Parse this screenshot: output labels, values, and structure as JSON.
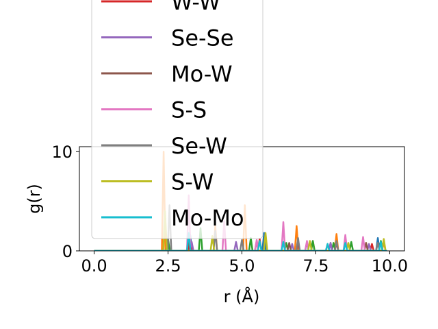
{
  "chart_data": {
    "type": "line",
    "xlabel": "r (Å)",
    "ylabel": "g(r)",
    "xlim": [
      -0.5,
      10.5
    ],
    "ylim": [
      0,
      10.5
    ],
    "xticks": [
      0.0,
      2.5,
      5.0,
      7.5,
      10.0
    ],
    "xtick_labels": [
      "0.0",
      "2.5",
      "5.0",
      "7.5",
      "10.0"
    ],
    "yticks": [
      0,
      10
    ],
    "ytick_labels": [
      "0",
      "10"
    ],
    "grid": false,
    "legend_position": "upper-left, overlapping plot",
    "series": [
      {
        "name": "W-W",
        "color": "#d62728",
        "peaks": [
          [
            3.25,
            1.0
          ],
          [
            5.6,
            1.2
          ],
          [
            6.9,
            0.8
          ],
          [
            8.2,
            0.8
          ],
          [
            9.4,
            0.7
          ]
        ]
      },
      {
        "name": "Se-Se",
        "color": "#9467bd",
        "peaks": [
          [
            3.3,
            0.9
          ],
          [
            4.8,
            0.9
          ],
          [
            6.7,
            0.7
          ],
          [
            8.0,
            0.8
          ],
          [
            9.3,
            0.7
          ]
        ]
      },
      {
        "name": "Mo-W",
        "color": "#8c564b",
        "peaks": [
          [
            3.2,
            1.1
          ],
          [
            5.5,
            1.0
          ],
          [
            6.6,
            0.8
          ],
          [
            7.9,
            0.7
          ],
          [
            9.2,
            0.8
          ]
        ]
      },
      {
        "name": "S-S",
        "color": "#e377c2",
        "peaks": [
          [
            3.2,
            5.6
          ],
          [
            4.4,
            3.0
          ],
          [
            5.5,
            1.1
          ],
          [
            6.4,
            2.9
          ],
          [
            7.2,
            1.0
          ],
          [
            8.5,
            1.6
          ],
          [
            9.1,
            1.4
          ]
        ]
      },
      {
        "name": "Se-W",
        "color": "#7f7f7f",
        "peaks": [
          [
            2.55,
            4.6
          ],
          [
            4.1,
            2.0
          ],
          [
            5.0,
            1.1
          ],
          [
            6.9,
            1.3
          ],
          [
            8.2,
            1.0
          ],
          [
            9.6,
            0.8
          ]
        ]
      },
      {
        "name": "S-W",
        "color": "#bcbd22",
        "peaks": [
          [
            2.4,
            4.0
          ],
          [
            4.0,
            1.5
          ],
          [
            5.8,
            1.8
          ],
          [
            7.3,
            1.0
          ],
          [
            8.6,
            0.8
          ],
          [
            9.8,
            1.2
          ]
        ]
      },
      {
        "name": "Mo-Mo",
        "color": "#17becf",
        "peaks": [
          [
            3.2,
            1.8
          ],
          [
            5.6,
            1.0
          ],
          [
            6.4,
            0.9
          ],
          [
            7.9,
            0.7
          ],
          [
            8.5,
            0.8
          ],
          [
            9.7,
            0.9
          ]
        ]
      }
    ],
    "background_series": [
      {
        "color": "#ff7f0e",
        "peaks": [
          [
            2.35,
            10.0
          ],
          [
            4.1,
            2.5
          ],
          [
            5.1,
            4.6
          ],
          [
            6.85,
            2.5
          ],
          [
            7.4,
            1.0
          ],
          [
            8.2,
            1.7
          ],
          [
            9.2,
            0.8
          ],
          [
            9.8,
            0.9
          ]
        ]
      },
      {
        "color": "#2ca02c",
        "peaks": [
          [
            2.5,
            1.2
          ],
          [
            3.6,
            2.3
          ],
          [
            5.3,
            1.3
          ],
          [
            6.5,
            0.8
          ],
          [
            7.4,
            1.0
          ],
          [
            8.1,
            0.8
          ],
          [
            8.7,
            0.9
          ],
          [
            9.7,
            1.0
          ]
        ]
      },
      {
        "color": "#1f77b4",
        "peaks": [
          [
            3.25,
            1.6
          ],
          [
            5.75,
            1.8
          ],
          [
            6.9,
            1.0
          ],
          [
            7.2,
            0.9
          ],
          [
            8.0,
            0.8
          ],
          [
            9.6,
            1.3
          ]
        ]
      }
    ]
  }
}
